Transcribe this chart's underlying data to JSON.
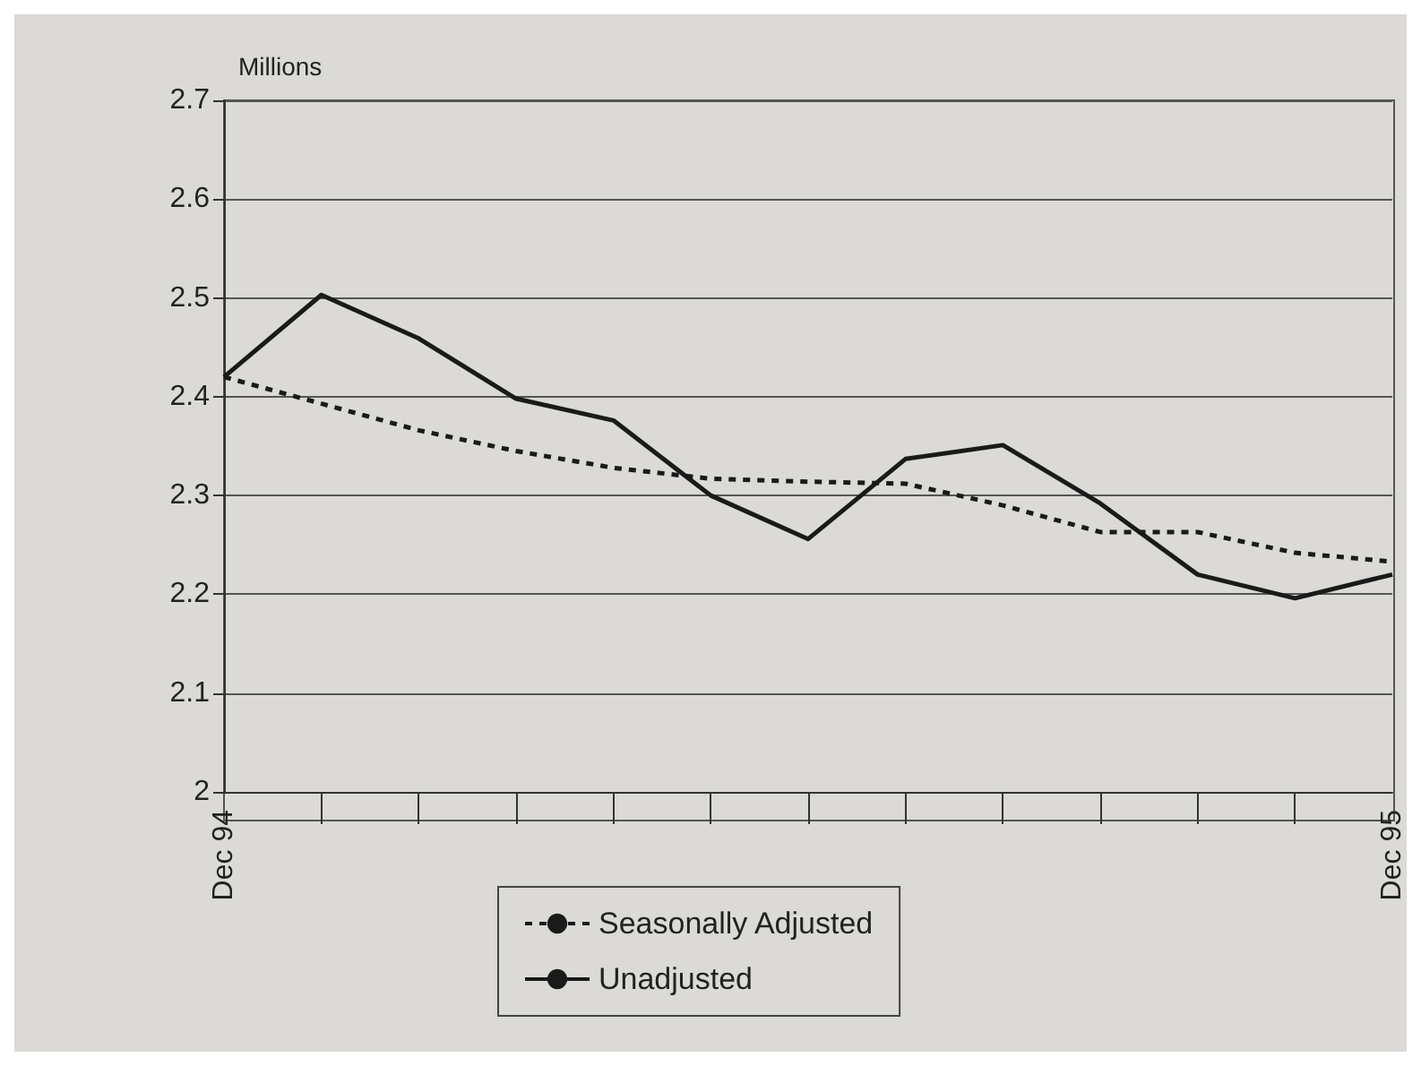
{
  "chart_data": {
    "type": "line",
    "ylabel": "Millions",
    "categories": [
      "Dec 94",
      null,
      null,
      null,
      null,
      null,
      null,
      null,
      null,
      null,
      null,
      null,
      "Dec 95"
    ],
    "series": [
      {
        "name": "Seasonally Adjusted",
        "color": "#1a1a1a",
        "line_style": "dashed",
        "values": [
          2.42,
          2.393,
          2.366,
          2.345,
          2.328,
          2.317,
          2.314,
          2.312,
          2.29,
          2.263,
          2.263,
          2.242,
          2.233
        ]
      },
      {
        "name": "Unadjusted",
        "color": "#1a1a1a",
        "line_style": "solid",
        "values": [
          2.42,
          2.503,
          2.459,
          2.398,
          2.376,
          2.3,
          2.256,
          2.337,
          2.351,
          2.292,
          2.22,
          2.196,
          2.22
        ]
      }
    ],
    "ylim": [
      2,
      2.7
    ],
    "yticks": [
      2,
      2.1,
      2.2,
      2.3,
      2.4,
      2.5,
      2.6,
      2.7
    ],
    "grid": "y",
    "legend": "bottom",
    "marker": "none"
  }
}
